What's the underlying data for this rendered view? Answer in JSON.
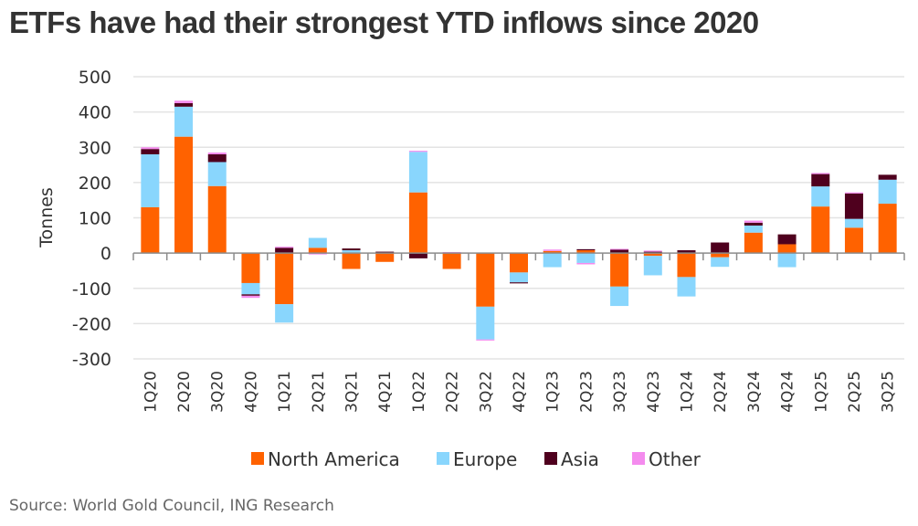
{
  "chart_data": {
    "type": "bar",
    "stacked": true,
    "title": "ETFs have had their strongest YTD inflows since 2020",
    "xlabel": "",
    "ylabel": "Tonnes",
    "ylim": [
      -300,
      500
    ],
    "yticks": [
      500,
      400,
      300,
      200,
      100,
      0,
      -100,
      -200,
      -300
    ],
    "grid": true,
    "legend_position": "bottom",
    "categories": [
      "1Q20",
      "2Q20",
      "3Q20",
      "4Q20",
      "1Q21",
      "2Q21",
      "3Q21",
      "4Q21",
      "1Q22",
      "2Q22",
      "3Q22",
      "4Q22",
      "1Q23",
      "2Q23",
      "3Q23",
      "4Q23",
      "1Q24",
      "2Q24",
      "3Q24",
      "4Q24",
      "1Q25",
      "2Q25",
      "3Q25"
    ],
    "series": [
      {
        "name": "North America",
        "color": "#FF6200",
        "values": [
          130,
          330,
          190,
          -85,
          -145,
          15,
          -45,
          -25,
          172,
          -45,
          -152,
          -55,
          6,
          8,
          -95,
          -8,
          -68,
          -12,
          58,
          25,
          132,
          72,
          140
        ]
      },
      {
        "name": "Europe",
        "color": "#89D6FD",
        "values": [
          150,
          85,
          68,
          -32,
          -52,
          28,
          8,
          0,
          115,
          0,
          -93,
          -28,
          -40,
          -28,
          -55,
          -55,
          -55,
          -27,
          20,
          -40,
          57,
          25,
          68
        ]
      },
      {
        "name": "Asia",
        "color": "#4F001E",
        "values": [
          15,
          10,
          22,
          -4,
          15,
          0,
          5,
          4,
          -15,
          0,
          0,
          -3,
          0,
          3,
          10,
          4,
          8,
          30,
          8,
          28,
          35,
          72,
          14
        ]
      },
      {
        "name": "Other",
        "color": "#F48BEE",
        "values": [
          5,
          7,
          5,
          -6,
          3,
          -4,
          0,
          0,
          3,
          3,
          -3,
          0,
          4,
          -4,
          2,
          3,
          0,
          0,
          6,
          0,
          3,
          3,
          0
        ]
      }
    ],
    "source": "Source: World Gold Council, ING Research"
  }
}
